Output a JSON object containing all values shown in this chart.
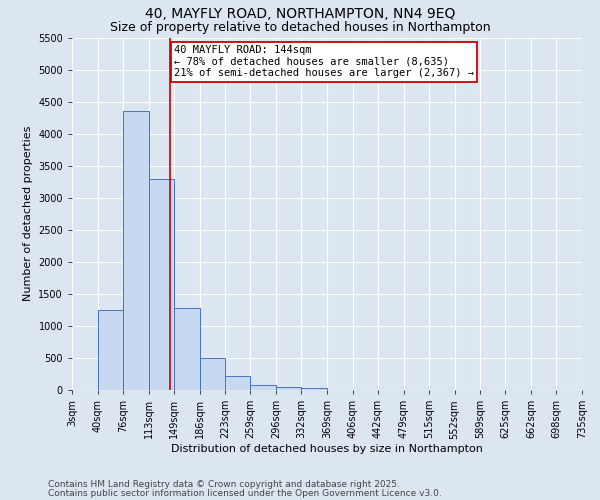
{
  "title1": "40, MAYFLY ROAD, NORTHAMPTON, NN4 9EQ",
  "title2": "Size of property relative to detached houses in Northampton",
  "xlabel": "Distribution of detached houses by size in Northampton",
  "ylabel": "Number of detached properties",
  "bin_edges": [
    3,
    40,
    76,
    113,
    149,
    186,
    223,
    259,
    296,
    332,
    369,
    406,
    442,
    479,
    515,
    552,
    589,
    625,
    662,
    698,
    735
  ],
  "bar_heights": [
    0,
    1250,
    4350,
    3300,
    1280,
    500,
    220,
    80,
    50,
    30,
    0,
    0,
    0,
    0,
    0,
    0,
    0,
    0,
    0,
    0
  ],
  "bar_color": "#c6d9f0",
  "bar_edge_color": "#4472c4",
  "vline_x": 144,
  "vline_color": "#cc0000",
  "annotation_line1": "40 MAYFLY ROAD: 144sqm",
  "annotation_line2": "← 78% of detached houses are smaller (8,635)",
  "annotation_line3": "21% of semi-detached houses are larger (2,367) →",
  "annotation_box_color": "#ffffff",
  "annotation_box_edge": "#cc0000",
  "ylim_max": 5500,
  "yticks": [
    0,
    500,
    1000,
    1500,
    2000,
    2500,
    3000,
    3500,
    4000,
    4500,
    5000,
    5500
  ],
  "footer1": "Contains HM Land Registry data © Crown copyright and database right 2025.",
  "footer2": "Contains public sector information licensed under the Open Government Licence v3.0.",
  "background_color": "#dce6f1",
  "grid_color": "#ffffff",
  "title_fontsize": 10,
  "subtitle_fontsize": 9,
  "axis_label_fontsize": 8,
  "tick_fontsize": 7,
  "annotation_fontsize": 7.5,
  "footer_fontsize": 6.5
}
